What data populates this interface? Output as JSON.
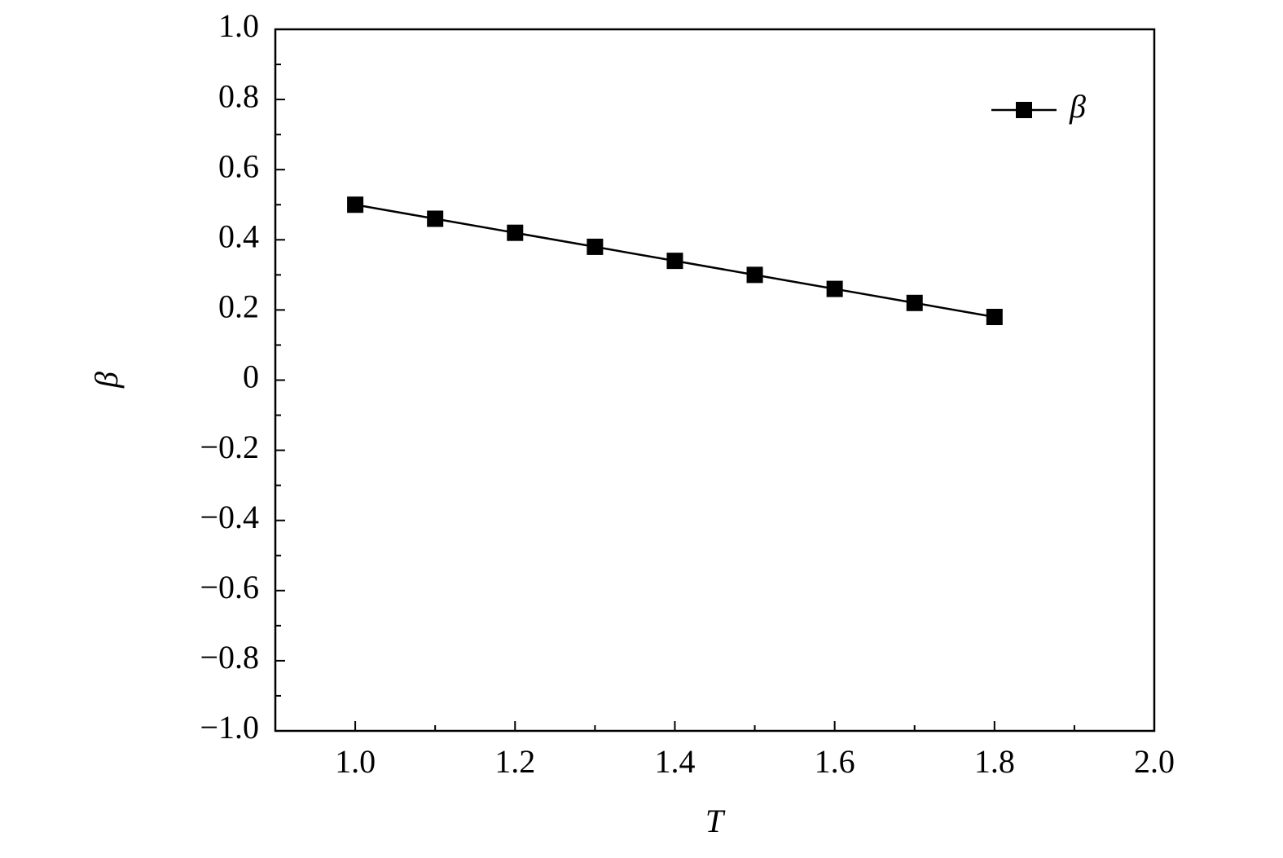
{
  "chart_data": {
    "type": "line",
    "x_label": "T",
    "y_label": "β",
    "x": [
      1.0,
      1.1,
      1.2,
      1.3,
      1.4,
      1.5,
      1.6,
      1.7,
      1.8
    ],
    "series": [
      {
        "name": "β",
        "color": "#000000",
        "values": [
          0.5,
          0.46,
          0.42,
          0.38,
          0.34,
          0.3,
          0.26,
          0.22,
          0.18
        ]
      }
    ],
    "xlim": [
      0.9,
      2.0
    ],
    "xticks": [
      {
        "value": 1,
        "label": "1.0"
      },
      {
        "value": 1.2,
        "label": "1.2"
      },
      {
        "value": 1.4,
        "label": "1.4"
      },
      {
        "value": 1.6,
        "label": "1.6"
      },
      {
        "value": 1.8,
        "label": "1.8"
      },
      {
        "value": 2,
        "label": "2.0"
      }
    ],
    "xminorticks": [
      1.1,
      1.3,
      1.5,
      1.7,
      1.9
    ],
    "ylim": [
      -1,
      1
    ],
    "yticks": [
      {
        "value": 1,
        "label": "1.0"
      },
      0.8,
      0.6,
      0.4,
      0.2,
      0,
      {
        "value": -0.2,
        "label": "−0.2"
      },
      {
        "value": -0.4,
        "label": "−0.4"
      },
      {
        "value": -0.6,
        "label": "−0.6"
      },
      {
        "value": -0.8,
        "label": "−0.8"
      },
      {
        "value": -1,
        "label": "−1.0"
      }
    ],
    "yminorticks": [
      0.9,
      0.7,
      0.5,
      0.3,
      0.1,
      -0.1,
      -0.3,
      -0.5,
      -0.7,
      -0.9
    ],
    "grid": false,
    "legend": "upper right"
  }
}
